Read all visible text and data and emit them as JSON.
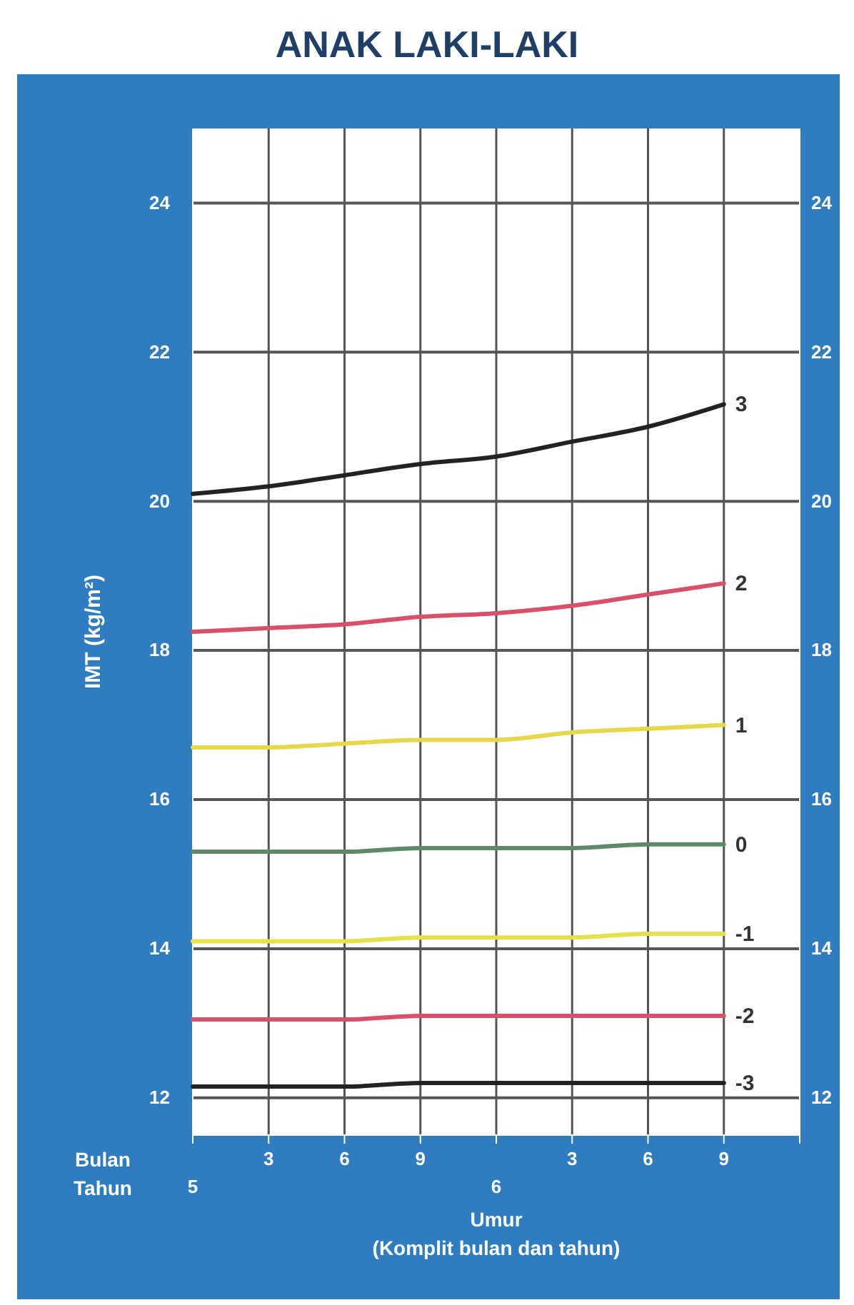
{
  "chart_data": {
    "type": "line",
    "title": "ANAK LAKI-LAKI",
    "ylabel": "IMT (kg/m²)",
    "xlabel": "Umur\n(Komplit bulan dan tahun)",
    "annotations": [
      "Bulan",
      "Tahun"
    ],
    "categories": [
      "5",
      "3",
      "6",
      "9",
      "6",
      "3",
      "6",
      "9",
      null
    ],
    "ylim": [
      11.5,
      25
    ],
    "yticks": [
      12,
      14,
      16,
      18,
      20,
      22,
      24
    ],
    "y2lim": [
      11.5,
      25
    ],
    "y2ticks": [
      12,
      14,
      16,
      18,
      20,
      22,
      24
    ],
    "grid": true,
    "line_style": "solid",
    "marker": "none",
    "series": [
      {
        "name": "3",
        "color": "#222222",
        "values": [
          20.1,
          20.2,
          20.35,
          20.5,
          20.6,
          20.8,
          21.0,
          21.3,
          null
        ]
      },
      {
        "name": "2",
        "color": "#d9506a",
        "values": [
          18.25,
          18.3,
          18.35,
          18.45,
          18.5,
          18.6,
          18.75,
          18.9,
          null
        ]
      },
      {
        "name": "1",
        "color": "#e6d84a",
        "values": [
          16.7,
          16.7,
          16.75,
          16.8,
          16.8,
          16.9,
          16.95,
          17.0,
          null
        ]
      },
      {
        "name": "0",
        "color": "#5f8a6a",
        "values": [
          15.3,
          15.3,
          15.3,
          15.35,
          15.35,
          15.35,
          15.4,
          15.4,
          null
        ]
      },
      {
        "name": "-1",
        "color": "#e6e04a",
        "values": [
          14.1,
          14.1,
          14.1,
          14.15,
          14.15,
          14.15,
          14.2,
          14.2,
          null
        ]
      },
      {
        "name": "-2",
        "color": "#d9506a",
        "values": [
          13.05,
          13.05,
          13.05,
          13.1,
          13.1,
          13.1,
          13.1,
          13.1,
          null
        ]
      },
      {
        "name": "-3",
        "color": "#222222",
        "values": [
          12.15,
          12.15,
          12.15,
          12.2,
          12.2,
          12.2,
          12.2,
          12.2,
          null
        ]
      }
    ]
  }
}
